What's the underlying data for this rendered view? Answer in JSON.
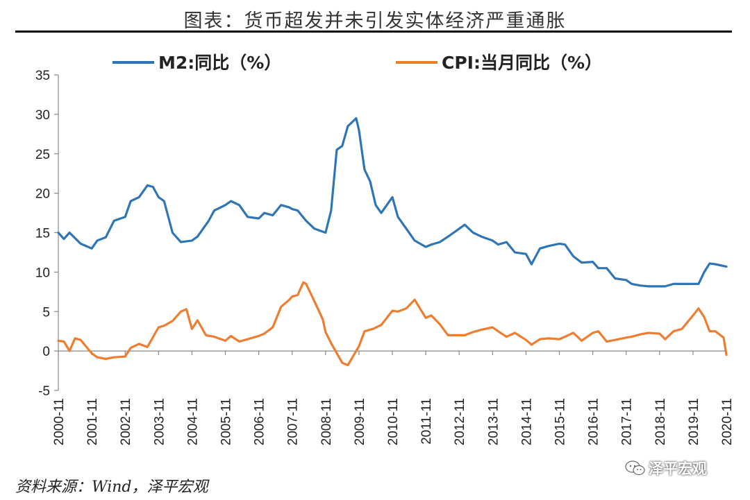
{
  "title": "图表：货币超发并未引发实体经济严重通胀",
  "source": "资料来源：Wind，泽平宏观",
  "watermark": "泽平宏观",
  "chart_data": {
    "type": "line",
    "ylim": [
      -5,
      35
    ],
    "yticks": [
      -5,
      0,
      5,
      10,
      15,
      20,
      25,
      30,
      35
    ],
    "xlim": [
      2000.833,
      2020.833
    ],
    "xtick_labels": [
      "2000-11",
      "2001-11",
      "2002-11",
      "2003-11",
      "2004-11",
      "2005-11",
      "2006-11",
      "2007-11",
      "2008-11",
      "2009-11",
      "2010-11",
      "2011-11",
      "2012-11",
      "2013-11",
      "2014-11",
      "2015-11",
      "2016-11",
      "2017-11",
      "2018-11",
      "2019-11",
      "2020-11"
    ],
    "legend_position": "top",
    "series": [
      {
        "name": "M2:同比（%）",
        "color": "#2E75B6",
        "x": [
          2000.833,
          2001.0,
          2001.167,
          2001.5,
          2001.833,
          2002.0,
          2002.25,
          2002.5,
          2002.833,
          2003.0,
          2003.25,
          2003.5,
          2003.667,
          2003.833,
          2004.0,
          2004.25,
          2004.5,
          2004.833,
          2005.0,
          2005.333,
          2005.5,
          2005.833,
          2006.0,
          2006.25,
          2006.5,
          2006.833,
          2007.0,
          2007.25,
          2007.5,
          2007.75,
          2007.833,
          2008.0,
          2008.25,
          2008.5,
          2008.833,
          2009.0,
          2009.167,
          2009.333,
          2009.5,
          2009.75,
          2009.833,
          2010.0,
          2010.167,
          2010.333,
          2010.5,
          2010.833,
          2011.0,
          2011.25,
          2011.5,
          2011.833,
          2012.0,
          2012.25,
          2012.5,
          2012.833,
          2013.0,
          2013.25,
          2013.5,
          2013.833,
          2014.0,
          2014.25,
          2014.5,
          2014.833,
          2015.0,
          2015.25,
          2015.5,
          2015.833,
          2016.0,
          2016.25,
          2016.5,
          2016.833,
          2017.0,
          2017.25,
          2017.5,
          2017.833,
          2018.0,
          2018.25,
          2018.5,
          2018.833,
          2019.0,
          2019.25,
          2019.5,
          2019.833,
          2020.0,
          2020.167,
          2020.333,
          2020.5,
          2020.833
        ],
        "values": [
          15.0,
          14.2,
          15.0,
          13.6,
          13.0,
          14.0,
          14.4,
          16.5,
          17.0,
          19.0,
          19.5,
          21.0,
          20.8,
          19.5,
          19.0,
          15.0,
          13.8,
          14.0,
          14.5,
          16.5,
          17.8,
          18.5,
          19.0,
          18.5,
          17.0,
          16.8,
          17.5,
          17.2,
          18.5,
          18.2,
          18.0,
          17.8,
          16.5,
          15.5,
          15.0,
          17.8,
          25.5,
          26.0,
          28.5,
          29.5,
          28.0,
          23.0,
          21.5,
          18.5,
          17.5,
          19.5,
          17.0,
          15.5,
          14.0,
          13.2,
          13.5,
          13.8,
          14.5,
          15.5,
          16.0,
          15.0,
          14.5,
          14.0,
          13.5,
          13.8,
          12.5,
          12.3,
          11.0,
          13.0,
          13.3,
          13.6,
          13.5,
          12.0,
          11.2,
          11.3,
          10.5,
          10.5,
          9.2,
          9.0,
          8.5,
          8.3,
          8.2,
          8.2,
          8.2,
          8.5,
          8.5,
          8.5,
          8.5,
          10.0,
          11.1,
          11.0,
          10.7
        ]
      },
      {
        "name": "CPI:当月同比（%）",
        "color": "#ED7D31",
        "x": [
          2000.833,
          2001.0,
          2001.167,
          2001.333,
          2001.5,
          2001.833,
          2002.0,
          2002.25,
          2002.5,
          2002.833,
          2003.0,
          2003.25,
          2003.5,
          2003.833,
          2004.0,
          2004.25,
          2004.5,
          2004.667,
          2004.833,
          2005.0,
          2005.25,
          2005.5,
          2005.833,
          2006.0,
          2006.25,
          2006.5,
          2006.833,
          2007.0,
          2007.25,
          2007.5,
          2007.75,
          2007.833,
          2008.0,
          2008.167,
          2008.25,
          2008.5,
          2008.75,
          2008.833,
          2009.0,
          2009.333,
          2009.5,
          2009.833,
          2010.0,
          2010.25,
          2010.5,
          2010.833,
          2011.0,
          2011.25,
          2011.5,
          2011.833,
          2012.0,
          2012.25,
          2012.5,
          2012.833,
          2013.0,
          2013.25,
          2013.5,
          2013.833,
          2014.0,
          2014.25,
          2014.5,
          2014.833,
          2015.0,
          2015.25,
          2015.5,
          2015.833,
          2016.0,
          2016.25,
          2016.5,
          2016.833,
          2017.0,
          2017.25,
          2017.5,
          2017.833,
          2018.0,
          2018.25,
          2018.5,
          2018.833,
          2019.0,
          2019.25,
          2019.5,
          2019.833,
          2020.0,
          2020.167,
          2020.333,
          2020.5,
          2020.75,
          2020.833
        ],
        "values": [
          1.3,
          1.2,
          0.0,
          1.6,
          1.4,
          -0.3,
          -0.8,
          -1.0,
          -0.8,
          -0.7,
          0.4,
          0.9,
          0.5,
          3.0,
          3.2,
          3.8,
          5.0,
          5.3,
          2.8,
          3.9,
          2.0,
          1.8,
          1.3,
          1.9,
          1.2,
          1.5,
          1.9,
          2.2,
          3.0,
          5.6,
          6.5,
          6.9,
          7.1,
          8.7,
          8.5,
          6.3,
          4.0,
          2.4,
          1.0,
          -1.5,
          -1.8,
          0.6,
          2.5,
          2.8,
          3.3,
          5.1,
          5.0,
          5.4,
          6.5,
          4.2,
          4.5,
          3.4,
          2.0,
          2.0,
          2.0,
          2.4,
          2.7,
          3.0,
          2.5,
          1.8,
          2.3,
          1.4,
          0.8,
          1.5,
          1.6,
          1.5,
          1.8,
          2.3,
          1.3,
          2.3,
          2.5,
          1.2,
          1.4,
          1.7,
          1.8,
          2.1,
          2.3,
          2.2,
          1.5,
          2.5,
          2.8,
          4.5,
          5.4,
          4.3,
          2.5,
          2.5,
          1.7,
          -0.5
        ]
      }
    ]
  }
}
